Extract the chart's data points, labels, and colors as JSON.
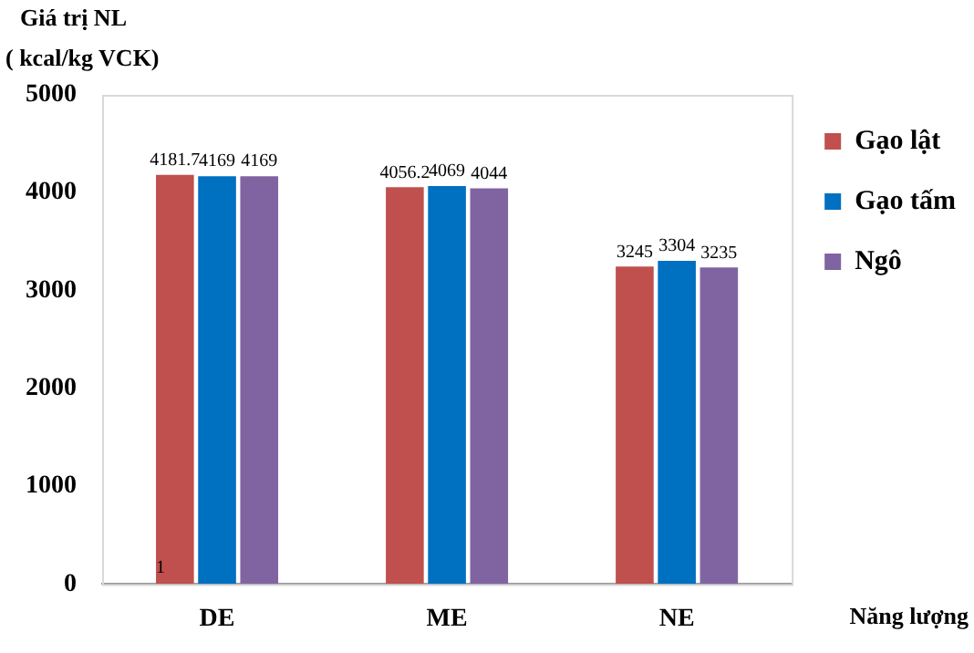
{
  "chart_data": {
    "type": "bar",
    "ylabel": "Giá trị NL\n( kcal/kg VCK)",
    "xlabel": "Năng lượng",
    "categories": [
      "DE",
      "ME",
      "NE"
    ],
    "series": [
      {
        "name": "Gạo lật",
        "color": "#c0504d",
        "values": [
          4181.7,
          4056.2,
          3245
        ],
        "value_labels": [
          "4181.7",
          "4056.2",
          "3245"
        ]
      },
      {
        "name": "Gạo tấm",
        "color": "#0070c0",
        "values": [
          4169,
          4069,
          3304
        ],
        "value_labels": [
          "4169",
          "4069",
          "3304"
        ]
      },
      {
        "name": "Ngô",
        "color": "#8064a2",
        "values": [
          4169,
          4044,
          3235
        ],
        "value_labels": [
          "4169",
          "4044",
          "3235"
        ]
      }
    ],
    "ylim": [
      0,
      5000
    ],
    "yticks": [
      0,
      1000,
      2000,
      3000,
      4000,
      5000
    ],
    "grid": false,
    "legend": "top right",
    "annotations": [
      "1"
    ]
  }
}
